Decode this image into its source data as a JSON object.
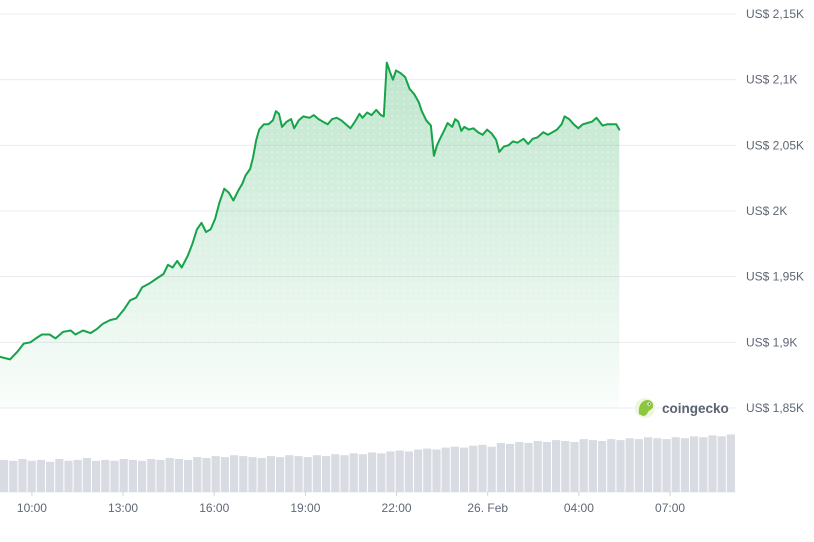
{
  "chart_data": {
    "type": "area",
    "ylim": [
      1850,
      2150
    ],
    "y_ticks": [
      {
        "value": 2150,
        "label": "US$ 2,15K"
      },
      {
        "value": 2100,
        "label": "US$ 2,1K"
      },
      {
        "value": 2050,
        "label": "US$ 2,05K"
      },
      {
        "value": 2000,
        "label": "US$ 2K"
      },
      {
        "value": 1950,
        "label": "US$ 1,95K"
      },
      {
        "value": 1900,
        "label": "US$ 1,9K"
      },
      {
        "value": 1850,
        "label": "US$ 1,85K"
      }
    ],
    "x_ticks": [
      {
        "t": 0.67,
        "label": "10:00"
      },
      {
        "t": 3.67,
        "label": "13:00"
      },
      {
        "t": 6.67,
        "label": "16:00"
      },
      {
        "t": 9.67,
        "label": "19:00"
      },
      {
        "t": 12.67,
        "label": "22:00"
      },
      {
        "t": 15.67,
        "label": "26. Feb"
      },
      {
        "t": 18.67,
        "label": "04:00"
      },
      {
        "t": 21.67,
        "label": "07:00"
      }
    ],
    "xlim": [
      -0.38,
      23.84
    ],
    "grid": true,
    "line_color": "#16a34a",
    "fill_color": "#16a34a",
    "series": [
      {
        "values": [
          [
            -0.38,
            1889
          ],
          [
            -0.05,
            1887
          ],
          [
            0.2,
            1893
          ],
          [
            0.4,
            1899
          ],
          [
            0.62,
            1900
          ],
          [
            0.8,
            1903
          ],
          [
            1.0,
            1906
          ],
          [
            1.25,
            1906
          ],
          [
            1.45,
            1903
          ],
          [
            1.7,
            1908
          ],
          [
            1.95,
            1909
          ],
          [
            2.1,
            1906
          ],
          [
            2.35,
            1909
          ],
          [
            2.6,
            1907
          ],
          [
            2.8,
            1910
          ],
          [
            3.0,
            1914
          ],
          [
            3.25,
            1917
          ],
          [
            3.45,
            1918
          ],
          [
            3.7,
            1925
          ],
          [
            3.9,
            1932
          ],
          [
            4.1,
            1934
          ],
          [
            4.3,
            1942
          ],
          [
            4.55,
            1945
          ],
          [
            4.8,
            1949
          ],
          [
            5.0,
            1952
          ],
          [
            5.15,
            1959
          ],
          [
            5.3,
            1957
          ],
          [
            5.45,
            1962
          ],
          [
            5.6,
            1957
          ],
          [
            5.8,
            1966
          ],
          [
            5.95,
            1975
          ],
          [
            6.1,
            1986
          ],
          [
            6.25,
            1991
          ],
          [
            6.4,
            1984
          ],
          [
            6.55,
            1986
          ],
          [
            6.7,
            1994
          ],
          [
            6.85,
            2007
          ],
          [
            7.0,
            2017
          ],
          [
            7.15,
            2014
          ],
          [
            7.3,
            2008
          ],
          [
            7.45,
            2015
          ],
          [
            7.6,
            2021
          ],
          [
            7.7,
            2027
          ],
          [
            7.85,
            2032
          ],
          [
            7.95,
            2041
          ],
          [
            8.05,
            2054
          ],
          [
            8.15,
            2062
          ],
          [
            8.3,
            2066
          ],
          [
            8.45,
            2066
          ],
          [
            8.6,
            2069
          ],
          [
            8.7,
            2076
          ],
          [
            8.8,
            2074
          ],
          [
            8.9,
            2064
          ],
          [
            9.05,
            2068
          ],
          [
            9.2,
            2070
          ],
          [
            9.3,
            2063
          ],
          [
            9.45,
            2069
          ],
          [
            9.6,
            2072
          ],
          [
            9.8,
            2071
          ],
          [
            9.95,
            2073
          ],
          [
            10.1,
            2070
          ],
          [
            10.25,
            2068
          ],
          [
            10.4,
            2066
          ],
          [
            10.55,
            2070
          ],
          [
            10.7,
            2071
          ],
          [
            10.85,
            2069
          ],
          [
            11.0,
            2066
          ],
          [
            11.15,
            2063
          ],
          [
            11.3,
            2068
          ],
          [
            11.45,
            2074
          ],
          [
            11.55,
            2071
          ],
          [
            11.7,
            2075
          ],
          [
            11.85,
            2073
          ],
          [
            12.0,
            2077
          ],
          [
            12.15,
            2073
          ],
          [
            12.25,
            2072
          ],
          [
            12.35,
            2113
          ],
          [
            12.45,
            2106
          ],
          [
            12.55,
            2100
          ],
          [
            12.65,
            2107
          ],
          [
            12.8,
            2105
          ],
          [
            12.95,
            2102
          ],
          [
            13.1,
            2093
          ],
          [
            13.25,
            2089
          ],
          [
            13.4,
            2083
          ],
          [
            13.5,
            2076
          ],
          [
            13.65,
            2069
          ],
          [
            13.8,
            2065
          ],
          [
            13.9,
            2042
          ],
          [
            14.0,
            2050
          ],
          [
            14.1,
            2055
          ],
          [
            14.25,
            2062
          ],
          [
            14.35,
            2067
          ],
          [
            14.5,
            2064
          ],
          [
            14.6,
            2070
          ],
          [
            14.7,
            2068
          ],
          [
            14.8,
            2061
          ],
          [
            14.9,
            2064
          ],
          [
            15.05,
            2062
          ],
          [
            15.2,
            2063
          ],
          [
            15.35,
            2060
          ],
          [
            15.5,
            2058
          ],
          [
            15.65,
            2062
          ],
          [
            15.8,
            2059
          ],
          [
            15.95,
            2054
          ],
          [
            16.05,
            2045
          ],
          [
            16.2,
            2049
          ],
          [
            16.35,
            2050
          ],
          [
            16.5,
            2053
          ],
          [
            16.65,
            2052
          ],
          [
            16.85,
            2055
          ],
          [
            17.0,
            2051
          ],
          [
            17.15,
            2055
          ],
          [
            17.3,
            2056
          ],
          [
            17.5,
            2060
          ],
          [
            17.65,
            2058
          ],
          [
            17.8,
            2060
          ],
          [
            17.95,
            2062
          ],
          [
            18.1,
            2066
          ],
          [
            18.2,
            2072
          ],
          [
            18.35,
            2070
          ],
          [
            18.5,
            2066
          ],
          [
            18.65,
            2063
          ],
          [
            18.8,
            2066
          ],
          [
            18.95,
            2067
          ],
          [
            19.1,
            2068
          ],
          [
            19.25,
            2071
          ],
          [
            19.35,
            2068
          ],
          [
            19.45,
            2065
          ],
          [
            19.6,
            2066
          ],
          [
            19.75,
            2066
          ],
          [
            19.9,
            2066
          ],
          [
            20.0,
            2062
          ]
        ]
      }
    ],
    "volume": {
      "values": [
        0.34,
        0.33,
        0.35,
        0.33,
        0.34,
        0.32,
        0.35,
        0.33,
        0.34,
        0.36,
        0.33,
        0.34,
        0.33,
        0.35,
        0.34,
        0.33,
        0.35,
        0.34,
        0.36,
        0.35,
        0.34,
        0.37,
        0.36,
        0.38,
        0.37,
        0.39,
        0.38,
        0.37,
        0.36,
        0.38,
        0.37,
        0.39,
        0.38,
        0.37,
        0.39,
        0.38,
        0.4,
        0.39,
        0.41,
        0.4,
        0.42,
        0.41,
        0.43,
        0.44,
        0.43,
        0.45,
        0.46,
        0.45,
        0.47,
        0.48,
        0.47,
        0.49,
        0.5,
        0.48,
        0.52,
        0.51,
        0.53,
        0.52,
        0.54,
        0.53,
        0.55,
        0.54,
        0.53,
        0.56,
        0.55,
        0.54,
        0.56,
        0.55,
        0.57,
        0.56,
        0.58,
        0.57,
        0.56,
        0.58,
        0.57,
        0.59,
        0.58,
        0.6,
        0.59,
        0.61
      ],
      "color": "#d8dbe1"
    }
  },
  "brand": {
    "name": "coingecko",
    "icon": "gecko-logo-icon",
    "icon_color": "#8dc63f"
  }
}
